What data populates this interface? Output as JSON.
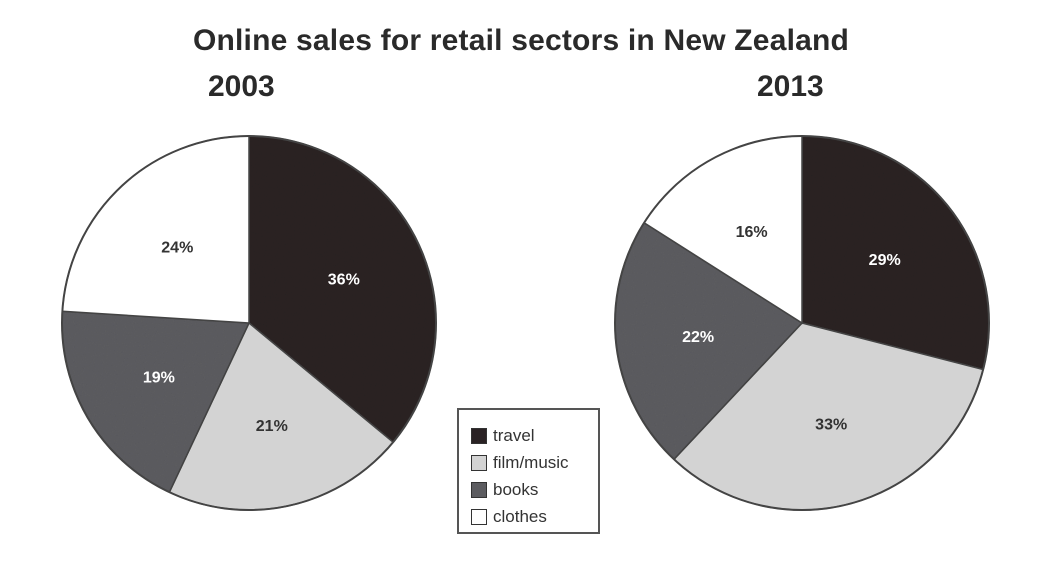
{
  "chart_data": [
    {
      "type": "pie",
      "title": "Online sales for retail sectors in New Zealand",
      "subtitle": "2003",
      "categories": [
        "travel",
        "film/music",
        "books",
        "clothes"
      ],
      "values": [
        36,
        21,
        19,
        24
      ],
      "labels": [
        "36%",
        "21%",
        "19%",
        "24%"
      ],
      "colors": [
        "#2a2224",
        "#d3d3d3",
        "#5c5c60",
        "#ffffff"
      ],
      "legend_position": "bottom-center"
    },
    {
      "type": "pie",
      "title": "Online sales for retail sectors in New Zealand",
      "subtitle": "2013",
      "categories": [
        "travel",
        "film/music",
        "books",
        "clothes"
      ],
      "values": [
        29,
        33,
        22,
        16
      ],
      "labels": [
        "29%",
        "33%",
        "22%",
        "16%"
      ],
      "colors": [
        "#2a2224",
        "#d3d3d3",
        "#5c5c60",
        "#ffffff"
      ],
      "legend_position": "bottom-center"
    }
  ],
  "title": "Online sales for retail sectors in New Zealand",
  "years": [
    "2003",
    "2013"
  ],
  "legend": [
    {
      "label": "travel",
      "color": "#2a2224"
    },
    {
      "label": "film/music",
      "color": "#d3d3d3"
    },
    {
      "label": "books",
      "color": "#5c5c60"
    },
    {
      "label": "clothes",
      "color": "#ffffff"
    }
  ]
}
